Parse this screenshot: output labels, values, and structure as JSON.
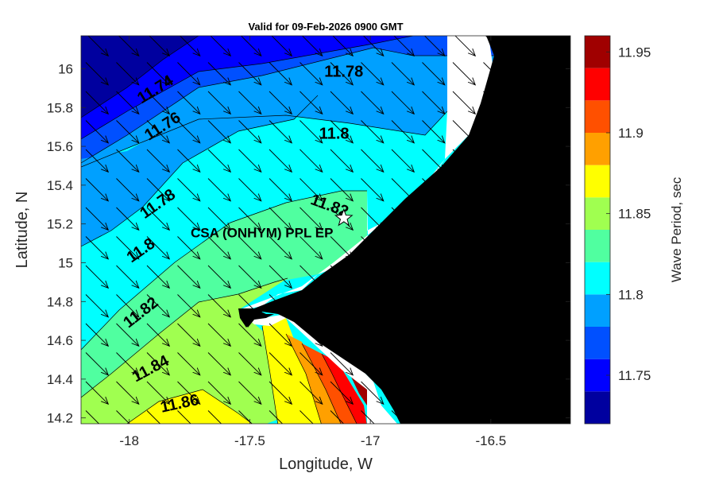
{
  "chart_data": {
    "type": "heatmap",
    "title": "Valid for 09-Feb-2026 0900 GMT",
    "xlabel": "Longitude, W",
    "ylabel": "Latitude, N",
    "colorbar_label": "Wave Period, sec",
    "xlim": [
      -18.2,
      -16.17
    ],
    "ylim": [
      14.17,
      16.17
    ],
    "x_ticks": [
      -18,
      -17.5,
      -17,
      -16.5
    ],
    "y_ticks": [
      14.2,
      14.4,
      14.6,
      14.8,
      15,
      15.2,
      15.4,
      15.6,
      15.8,
      16
    ],
    "colorbar_range": [
      11.72,
      11.96
    ],
    "colorbar_ticks": [
      11.75,
      11.8,
      11.85,
      11.9,
      11.95
    ],
    "levels": [
      11.72,
      11.74,
      11.76,
      11.78,
      11.8,
      11.82,
      11.84,
      11.86,
      11.88,
      11.9,
      11.92,
      11.94,
      11.96
    ],
    "level_colors": [
      "#00009f",
      "#0000ff",
      "#0050ff",
      "#00a0ff",
      "#00ffff",
      "#50ffa0",
      "#a0ff50",
      "#ffff00",
      "#ffa000",
      "#ff5000",
      "#ff0000",
      "#a00000"
    ],
    "contour_labels": [
      {
        "text": "11.74",
        "lon": -17.89,
        "lat": 15.89,
        "angle": -32
      },
      {
        "text": "11.76",
        "lon": -17.86,
        "lat": 15.7,
        "angle": -32
      },
      {
        "text": "11.78",
        "lon": -17.11,
        "lat": 15.98,
        "angle": 0
      },
      {
        "text": "11.8",
        "lon": -17.15,
        "lat": 15.66,
        "angle": 0
      },
      {
        "text": "11.78",
        "lon": -17.88,
        "lat": 15.3,
        "angle": -35
      },
      {
        "text": "11.82",
        "lon": -17.17,
        "lat": 15.29,
        "angle": 20
      },
      {
        "text": "11.8",
        "lon": -17.95,
        "lat": 15.06,
        "angle": -35
      },
      {
        "text": "11.82",
        "lon": -17.95,
        "lat": 14.74,
        "angle": -38
      },
      {
        "text": "11.84",
        "lon": -17.91,
        "lat": 14.45,
        "angle": -28
      },
      {
        "text": "11.86",
        "lon": -17.79,
        "lat": 14.27,
        "angle": -12
      }
    ],
    "station": {
      "name": "CSA (ONHYM) PPL EP",
      "lon": -17.11,
      "lat": 15.23
    },
    "wave_direction_deg_from_east": -45
  }
}
